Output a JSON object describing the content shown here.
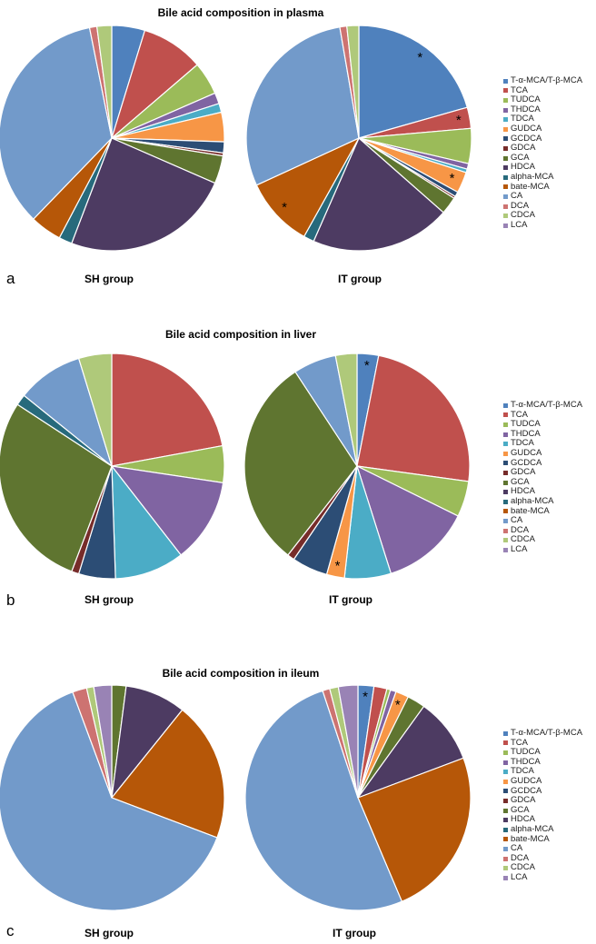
{
  "legend_labels": [
    "T-α-MCA/T-β-MCA",
    "TCA",
    "TUDCA",
    "THDCA",
    "TDCA",
    "GUDCA",
    "GCDCA",
    "GDCA",
    "GCA",
    "HDCA",
    "alpha-MCA",
    "bate-MCA",
    "CA",
    "DCA",
    "CDCA",
    "LCA"
  ],
  "colors": [
    "#4F81BD",
    "#C0504D",
    "#9BBB59",
    "#8064A2",
    "#4BACC6",
    "#F79646",
    "#2C4D75",
    "#772C2A",
    "#5F7530",
    "#4D3B62",
    "#276A7C",
    "#B65708",
    "#729ACA",
    "#CD7371",
    "#AFC97A",
    "#9983B5"
  ],
  "chart_data": [
    {
      "type": "pie",
      "panel": "a",
      "title": "Bile acid composition in plasma",
      "groups": [
        {
          "label": "SH group",
          "values": [
            4.5,
            8.5,
            4.5,
            1.5,
            1.2,
            4.0,
            1.5,
            0.4,
            3.8,
            23.0,
            1.8,
            4.3,
            32.8,
            1.0,
            2.0,
            0
          ],
          "significant": []
        },
        {
          "label": "IT group",
          "values": [
            20.5,
            3.0,
            5.0,
            0.8,
            0.5,
            3.0,
            0.7,
            0.3,
            2.5,
            20.0,
            1.5,
            10.0,
            29.0,
            1.0,
            1.7,
            0
          ],
          "significant": [
            0,
            1,
            5,
            11
          ]
        }
      ]
    },
    {
      "type": "pie",
      "panel": "b",
      "title": "Bile acid composition in liver",
      "groups": [
        {
          "label": "SH group",
          "values": [
            0,
            21.0,
            5.0,
            11.5,
            9.5,
            0,
            5.0,
            1.0,
            27.0,
            0,
            1.5,
            0,
            9.0,
            0,
            4.5,
            0
          ],
          "significant": []
        },
        {
          "label": "IT group",
          "values": [
            3.0,
            23.5,
            5.0,
            12.5,
            6.5,
            2.5,
            5.0,
            1.0,
            29.5,
            0,
            0,
            0,
            6.0,
            0,
            3.0,
            0
          ],
          "significant": [
            0,
            5
          ]
        }
      ]
    },
    {
      "type": "pie",
      "panel": "c",
      "title": "Bile acid composition in ileum",
      "groups": [
        {
          "label": "SH group",
          "values": [
            0,
            0,
            0,
            0,
            0,
            0,
            0,
            0,
            2.0,
            8.5,
            0,
            19.5,
            62.0,
            2.0,
            1.0,
            2.5
          ],
          "significant": []
        },
        {
          "label": "IT group",
          "values": [
            2.2,
            1.8,
            0.5,
            0.8,
            0,
            1.8,
            0,
            0,
            2.5,
            9.0,
            0,
            23.5,
            49.5,
            1.0,
            1.2,
            2.7
          ],
          "significant": [
            0,
            5
          ]
        }
      ]
    }
  ]
}
